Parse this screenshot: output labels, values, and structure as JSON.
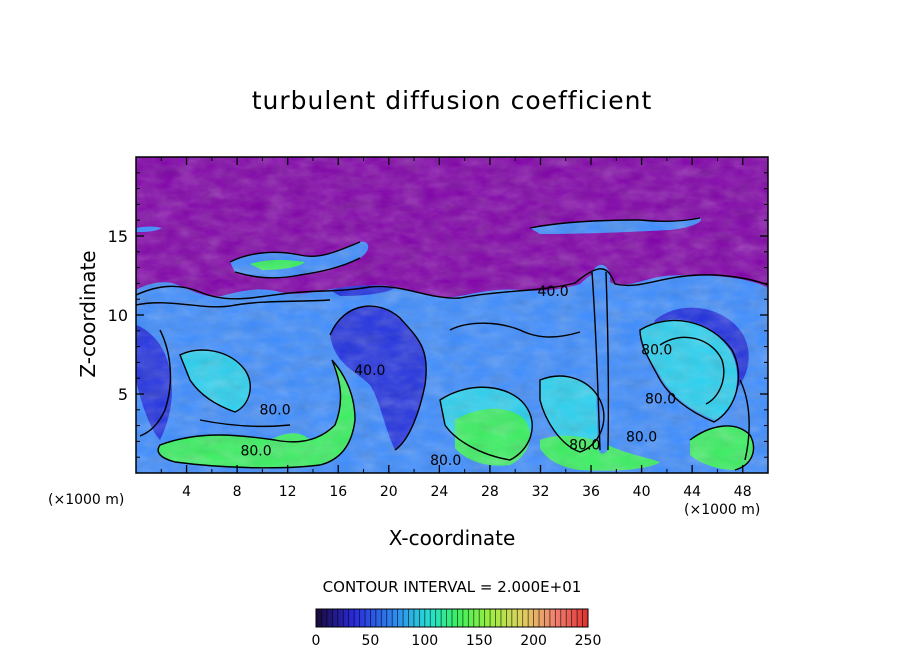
{
  "chart_data": {
    "type": "heatmap",
    "title": "turbulent diffusion coefficient",
    "xlabel": "X-coordinate",
    "ylabel": "Z-coordinate",
    "x_unit": "(×1000 m)",
    "x_unit_right": "(×1000 m)",
    "xlim": [
      0,
      50
    ],
    "ylim": [
      0,
      20
    ],
    "x_ticks": [
      4,
      8,
      12,
      16,
      20,
      24,
      28,
      32,
      36,
      40,
      44,
      48
    ],
    "y_ticks": [
      5,
      10,
      15
    ],
    "contour_interval_text": "CONTOUR INTERVAL = 2.000E+01",
    "contour_labels": [
      {
        "x": 11,
        "y": 3.7,
        "text": "80.0"
      },
      {
        "x": 9.5,
        "y": 1.1,
        "text": "80.0"
      },
      {
        "x": 33,
        "y": 11.2,
        "text": "40.0"
      },
      {
        "x": 18.5,
        "y": 6.2,
        "text": "40.0"
      },
      {
        "x": 24.5,
        "y": 0.5,
        "text": "80.0"
      },
      {
        "x": 35.5,
        "y": 1.5,
        "text": "80.0"
      },
      {
        "x": 40,
        "y": 2.0,
        "text": "80.0"
      },
      {
        "x": 41.5,
        "y": 4.4,
        "text": "80.0"
      },
      {
        "x": 41.2,
        "y": 7.5,
        "text": "80.0"
      }
    ],
    "colorbar": {
      "min": 0,
      "max": 250,
      "ticks": [
        0,
        50,
        100,
        150,
        200,
        250
      ],
      "colors": [
        "#1a0a3a",
        "#2a2adc",
        "#2e90f0",
        "#25e0d0",
        "#3cf060",
        "#9cee40",
        "#e0d060",
        "#f08070",
        "#e03030"
      ]
    },
    "field_colors": {
      "background": "#8000a8",
      "deep_blue": "#2030e0",
      "mid_blue": "#3c8cff",
      "cyan": "#28d0f0",
      "green": "#38f060"
    }
  }
}
